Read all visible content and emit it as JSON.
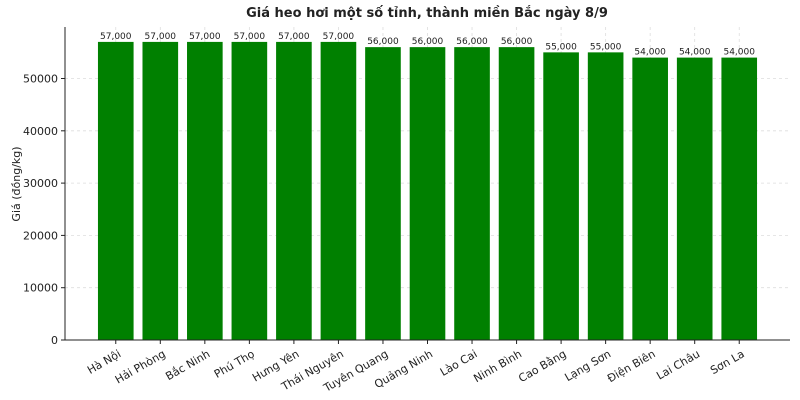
{
  "chart_data": {
    "type": "bar",
    "title": "Giá heo hơi một số tỉnh, thành miền Bắc ngày 8/9",
    "ylabel": "Giá (đồng/kg)",
    "categories": [
      "Hà Nội",
      "Hải Phòng",
      "Bắc Ninh",
      "Phú Thọ",
      "Hưng Yên",
      "Thái Nguyên",
      "Tuyên Quang",
      "Quảng Ninh",
      "Lào Cai",
      "Ninh Bình",
      "Cao Bằng",
      "Lạng Sơn",
      "Điện Biên",
      "Lai Châu",
      "Sơn La"
    ],
    "values": [
      57000,
      57000,
      57000,
      57000,
      57000,
      57000,
      56000,
      56000,
      56000,
      56000,
      55000,
      55000,
      54000,
      54000,
      54000
    ],
    "value_labels": [
      "57,000",
      "57,000",
      "57,000",
      "57,000",
      "57,000",
      "57,000",
      "56,000",
      "56,000",
      "56,000",
      "56,000",
      "55,000",
      "55,000",
      "54,000",
      "54,000",
      "54,000"
    ],
    "color": "#008000",
    "ylim": [
      0,
      59850
    ],
    "yticks": [
      0,
      10000,
      20000,
      30000,
      40000,
      50000
    ],
    "grid": true
  }
}
